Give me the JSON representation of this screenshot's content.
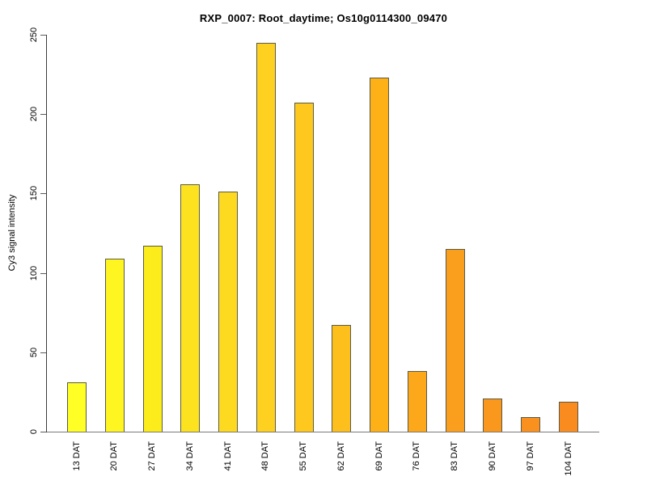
{
  "chart_data": {
    "type": "bar",
    "title": "RXP_0007: Root_daytime; Os10g0114300_09470",
    "xlabel": "",
    "ylabel": "Cy3 signal intensity",
    "categories": [
      "13 DAT",
      "20 DAT",
      "27 DAT",
      "34 DAT",
      "41 DAT",
      "48 DAT",
      "55 DAT",
      "62 DAT",
      "69 DAT",
      "76 DAT",
      "83 DAT",
      "90 DAT",
      "97 DAT",
      "104 DAT"
    ],
    "values": [
      31,
      109,
      117,
      156,
      151,
      245,
      207,
      67,
      223,
      38,
      115,
      21,
      9,
      19
    ],
    "bar_colors": [
      "#FFFF26",
      "#FFF521",
      "#FCEC1B",
      "#FDE31F",
      "#FDDA20",
      "#FED120",
      "#FEC81E",
      "#FDBF1B",
      "#FEB117",
      "#FCA81A",
      "#FA9E1E",
      "#FA981E",
      "#FA911E",
      "#FA8B1E"
    ],
    "bar_border_color": "#5A5A45",
    "axis_color": "#7A7A7A",
    "ylim": [
      0,
      250
    ],
    "yticks": [
      0,
      50,
      100,
      150,
      200,
      250
    ],
    "grid": false,
    "legend": null
  }
}
